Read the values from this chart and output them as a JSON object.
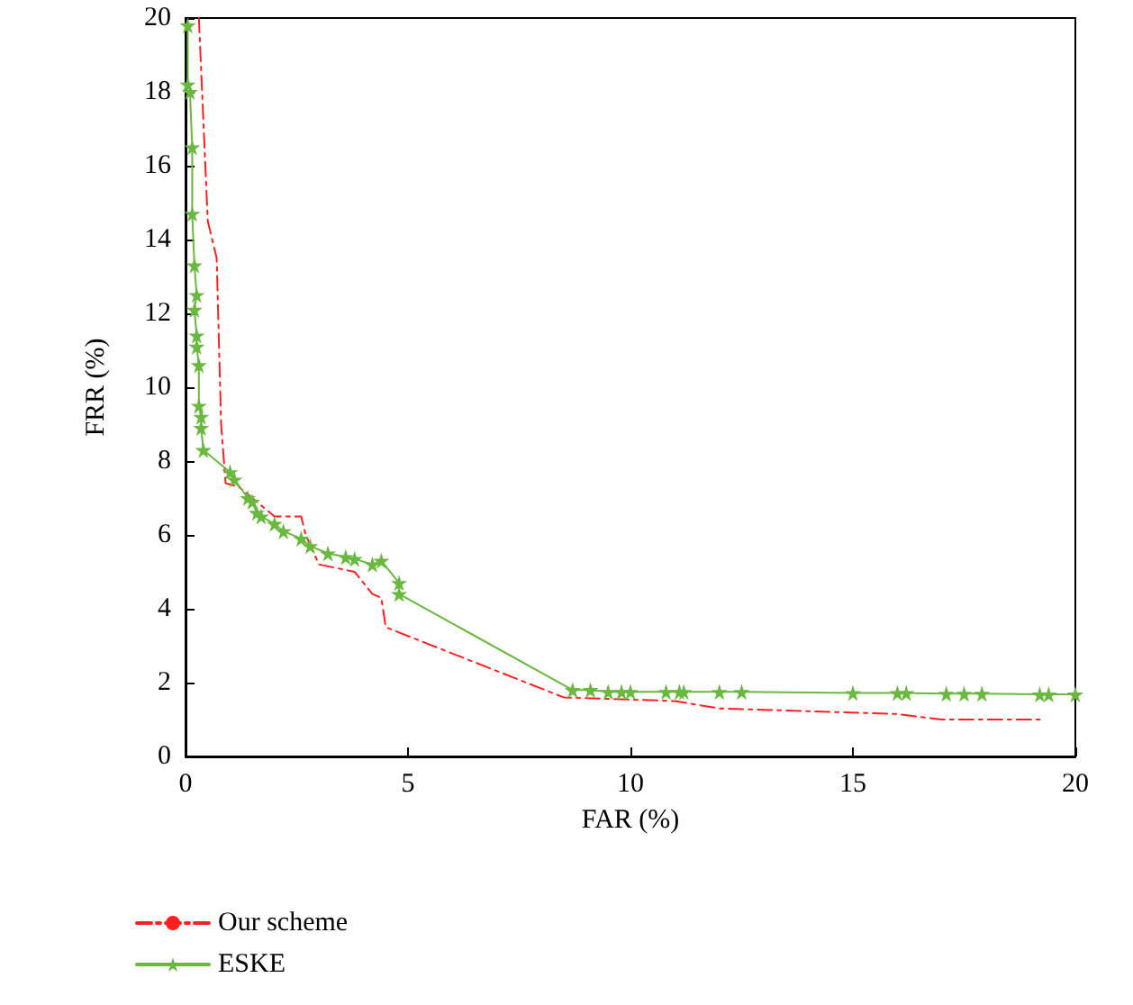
{
  "chart_data": {
    "type": "line",
    "xlabel": "FAR (%)",
    "ylabel": "FRR (%)",
    "xlim": [
      0,
      20
    ],
    "xticks": [
      0,
      5,
      10,
      15,
      20
    ],
    "ylim": [
      0,
      20
    ],
    "yticks": [
      0,
      2,
      4,
      6,
      8,
      10,
      12,
      14,
      16,
      18,
      20
    ],
    "grid": false,
    "legend": "bottom left",
    "series": [
      {
        "name": "Our scheme",
        "color": "#ff2020",
        "line_style": "dashed",
        "marker": "none",
        "x": [
          0.3,
          0.5,
          0.7,
          0.8,
          0.9,
          1.2,
          2.0,
          2.6,
          2.7,
          3.0,
          3.8,
          4.2,
          4.4,
          4.5,
          8.5,
          11,
          12,
          16,
          17,
          19.2
        ],
        "values": [
          20,
          14.5,
          13.5,
          9,
          7.4,
          7.3,
          6.5,
          6.5,
          6.0,
          5.2,
          5.0,
          4.4,
          4.3,
          3.5,
          1.6,
          1.5,
          1.3,
          1.15,
          1.0,
          1.0
        ]
      },
      {
        "name": "ESKE",
        "color": "#6ab840",
        "line_style": "solid",
        "marker": "star",
        "x": [
          0.05,
          0.05,
          0.1,
          0.15,
          0.15,
          0.2,
          0.25,
          0.2,
          0.25,
          0.25,
          0.3,
          0.3,
          0.35,
          0.35,
          0.4,
          1.0,
          1.1,
          1.4,
          1.5,
          1.6,
          1.7,
          2.0,
          2.2,
          2.6,
          2.8,
          3.2,
          3.6,
          3.8,
          4.2,
          4.4,
          4.8,
          4.8,
          8.7,
          9.1,
          9.5,
          9.8,
          10.0,
          10.8,
          11.1,
          11.2,
          12.0,
          12.5,
          15.0,
          16.0,
          16.2,
          17.1,
          17.5,
          17.9,
          19.2,
          19.4,
          20
        ],
        "values": [
          19.8,
          18.2,
          18,
          16.5,
          14.7,
          13.3,
          12.5,
          12.1,
          11.4,
          11.1,
          10.6,
          9.5,
          9.2,
          8.9,
          8.3,
          7.7,
          7.5,
          7.0,
          6.9,
          6.6,
          6.5,
          6.3,
          6.1,
          5.9,
          5.7,
          5.5,
          5.4,
          5.35,
          5.2,
          5.3,
          4.7,
          4.4,
          1.8,
          1.8,
          1.75,
          1.75,
          1.75,
          1.75,
          1.75,
          1.75,
          1.75,
          1.75,
          1.72,
          1.72,
          1.72,
          1.7,
          1.7,
          1.7,
          1.68,
          1.68,
          1.68
        ]
      }
    ]
  }
}
